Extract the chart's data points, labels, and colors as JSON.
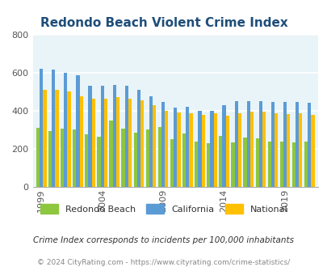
{
  "title": "Redondo Beach Violent Crime Index",
  "subtitle": "Crime Index corresponds to incidents per 100,000 inhabitants",
  "copyright": "© 2024 CityRating.com - https://www.cityrating.com/crime-statistics/",
  "years": [
    1999,
    2000,
    2001,
    2002,
    2003,
    2004,
    2005,
    2006,
    2007,
    2008,
    2009,
    2010,
    2011,
    2012,
    2013,
    2014,
    2015,
    2016,
    2017,
    2018,
    2019,
    2020,
    2021
  ],
  "redondo_beach": [
    310,
    295,
    308,
    300,
    278,
    265,
    348,
    308,
    285,
    300,
    315,
    250,
    280,
    240,
    230,
    270,
    232,
    260,
    255,
    240,
    240,
    235,
    238
  ],
  "california": [
    620,
    618,
    598,
    585,
    533,
    530,
    535,
    530,
    510,
    478,
    445,
    415,
    422,
    400,
    398,
    428,
    450,
    450,
    450,
    445,
    445,
    448,
    442
  ],
  "national": [
    510,
    510,
    500,
    475,
    465,
    465,
    473,
    465,
    455,
    430,
    400,
    390,
    385,
    377,
    388,
    375,
    385,
    395,
    395,
    385,
    383,
    385,
    380
  ],
  "bar_width": 0.28,
  "ylim": [
    0,
    800
  ],
  "yticks": [
    0,
    200,
    400,
    600,
    800
  ],
  "xtick_years": [
    1999,
    2004,
    2009,
    2014,
    2019
  ],
  "colors": {
    "redondo_beach": "#8dc63f",
    "california": "#5b9bd5",
    "national": "#ffc000",
    "background": "#e8f4f8",
    "title": "#1f4e79",
    "copyright": "#888888",
    "grid": "#ffffff"
  },
  "legend": {
    "redondo_beach": "Redondo Beach",
    "california": "California",
    "national": "National"
  }
}
